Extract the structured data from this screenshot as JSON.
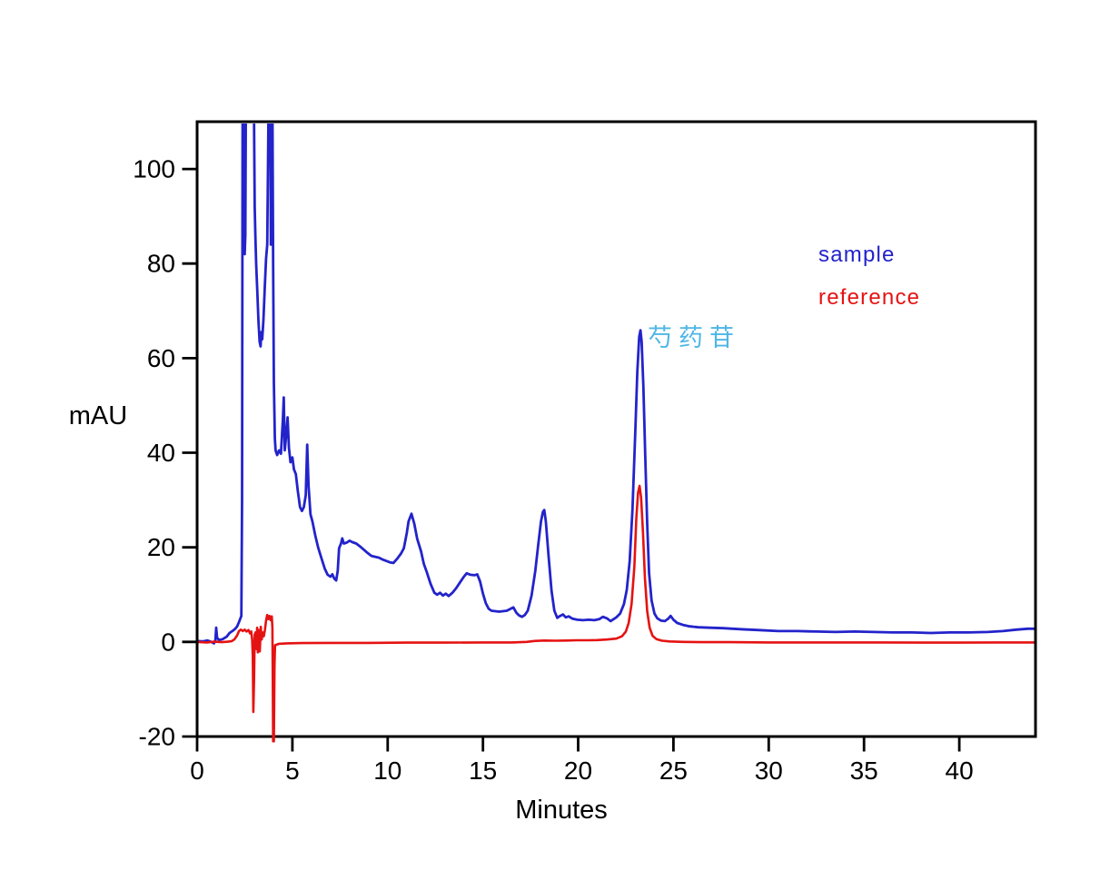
{
  "figure": {
    "background": "#ffffff",
    "border_color": "#000000"
  },
  "chart_data": {
    "type": "line",
    "title": "",
    "xlabel": "Minutes",
    "ylabel": "mAU",
    "xlim": [
      0,
      44
    ],
    "ylim": [
      -20,
      110
    ],
    "x_ticks": [
      0,
      5,
      10,
      15,
      20,
      25,
      30,
      35,
      40
    ],
    "y_ticks": [
      -20,
      0,
      20,
      40,
      60,
      80,
      100
    ],
    "grid": false,
    "legend": {
      "position": "upper-right-inside",
      "entries": [
        {
          "label": "sample",
          "color": "#2323CB"
        },
        {
          "label": "reference",
          "color": "#E51212"
        }
      ]
    },
    "annotations": [
      {
        "text": "芍药苷",
        "x": 23.7,
        "y": 63,
        "color": "#4FB6E6"
      }
    ],
    "series": [
      {
        "name": "sample",
        "color": "#2323CB",
        "stroke_width": 2.8,
        "points": [
          [
            0,
            0.2
          ],
          [
            0.3,
            0.1
          ],
          [
            0.55,
            0.3
          ],
          [
            0.75,
            0
          ],
          [
            0.88,
            -0.3
          ],
          [
            0.96,
            0.3
          ],
          [
            1.0,
            3
          ],
          [
            1.05,
            0.9
          ],
          [
            1.15,
            0.4
          ],
          [
            1.35,
            0.6
          ],
          [
            1.55,
            1.1
          ],
          [
            1.7,
            1.9
          ],
          [
            1.85,
            2.3
          ],
          [
            2.0,
            2.8
          ],
          [
            2.1,
            3.3
          ],
          [
            2.2,
            4.2
          ],
          [
            2.32,
            5.5
          ],
          [
            2.36,
            30
          ],
          [
            2.39,
            115
          ],
          [
            2.45,
            115
          ],
          [
            2.47,
            90
          ],
          [
            2.5,
            82
          ],
          [
            2.53,
            86
          ],
          [
            2.56,
            115
          ],
          [
            2.98,
            115
          ],
          [
            3.02,
            92
          ],
          [
            3.06,
            85.5
          ],
          [
            3.1,
            80
          ],
          [
            3.16,
            74
          ],
          [
            3.22,
            68
          ],
          [
            3.28,
            63.5
          ],
          [
            3.33,
            62.5
          ],
          [
            3.37,
            65.5
          ],
          [
            3.42,
            64
          ],
          [
            3.48,
            68
          ],
          [
            3.55,
            75
          ],
          [
            3.62,
            81
          ],
          [
            3.68,
            84
          ],
          [
            3.72,
            100
          ],
          [
            3.75,
            115
          ],
          [
            3.84,
            115
          ],
          [
            3.87,
            84
          ],
          [
            3.9,
            115
          ],
          [
            3.95,
            115
          ],
          [
            3.99,
            80
          ],
          [
            4.03,
            55
          ],
          [
            4.08,
            43
          ],
          [
            4.12,
            40.5
          ],
          [
            4.2,
            39.5
          ],
          [
            4.3,
            40.5
          ],
          [
            4.4,
            39.8
          ],
          [
            4.5,
            47
          ],
          [
            4.55,
            51.7
          ],
          [
            4.6,
            40.5
          ],
          [
            4.68,
            44
          ],
          [
            4.75,
            47.5
          ],
          [
            4.82,
            41
          ],
          [
            4.9,
            38
          ],
          [
            5.0,
            39
          ],
          [
            5.08,
            36.5
          ],
          [
            5.18,
            35.5
          ],
          [
            5.28,
            32
          ],
          [
            5.4,
            28.5
          ],
          [
            5.5,
            27.7
          ],
          [
            5.6,
            28.5
          ],
          [
            5.7,
            31
          ],
          [
            5.78,
            41.7
          ],
          [
            5.85,
            33
          ],
          [
            5.95,
            27
          ],
          [
            6.05,
            25.5
          ],
          [
            6.2,
            22.5
          ],
          [
            6.35,
            20
          ],
          [
            6.5,
            18
          ],
          [
            6.7,
            15.5
          ],
          [
            6.85,
            14.2
          ],
          [
            7.0,
            13.8
          ],
          [
            7.1,
            14.3
          ],
          [
            7.2,
            13.4
          ],
          [
            7.3,
            13
          ],
          [
            7.38,
            15
          ],
          [
            7.45,
            19.8
          ],
          [
            7.55,
            20.8
          ],
          [
            7.62,
            21.9
          ],
          [
            7.7,
            20.8
          ],
          [
            7.85,
            21
          ],
          [
            8.0,
            21.4
          ],
          [
            8.15,
            21.1
          ],
          [
            8.35,
            20.8
          ],
          [
            8.55,
            20.2
          ],
          [
            8.75,
            19.5
          ],
          [
            8.95,
            18.8
          ],
          [
            9.15,
            18.2
          ],
          [
            9.35,
            18
          ],
          [
            9.55,
            17.8
          ],
          [
            9.75,
            17.4
          ],
          [
            9.95,
            17.1
          ],
          [
            10.15,
            16.8
          ],
          [
            10.3,
            16.7
          ],
          [
            10.5,
            17.6
          ],
          [
            10.7,
            18.7
          ],
          [
            10.85,
            19.8
          ],
          [
            11.0,
            23
          ],
          [
            11.1,
            25.5
          ],
          [
            11.25,
            27.1
          ],
          [
            11.4,
            25
          ],
          [
            11.55,
            21.8
          ],
          [
            11.75,
            19.2
          ],
          [
            11.9,
            16.5
          ],
          [
            12.05,
            14.8
          ],
          [
            12.25,
            12.3
          ],
          [
            12.45,
            10.4
          ],
          [
            12.6,
            10
          ],
          [
            12.75,
            10.4
          ],
          [
            12.9,
            9.8
          ],
          [
            13.05,
            10.2
          ],
          [
            13.2,
            9.7
          ],
          [
            13.4,
            10.4
          ],
          [
            13.6,
            11.4
          ],
          [
            13.8,
            12.6
          ],
          [
            14.0,
            13.8
          ],
          [
            14.15,
            14.5
          ],
          [
            14.35,
            14.2
          ],
          [
            14.55,
            14.1
          ],
          [
            14.7,
            14.3
          ],
          [
            14.85,
            12.8
          ],
          [
            15.0,
            10.2
          ],
          [
            15.15,
            8.2
          ],
          [
            15.3,
            7
          ],
          [
            15.45,
            6.6
          ],
          [
            15.65,
            6.5
          ],
          [
            15.85,
            6.4
          ],
          [
            16.05,
            6.5
          ],
          [
            16.25,
            6.6
          ],
          [
            16.45,
            7
          ],
          [
            16.6,
            7.3
          ],
          [
            16.75,
            6.2
          ],
          [
            16.9,
            5.6
          ],
          [
            17.05,
            5.3
          ],
          [
            17.2,
            5.7
          ],
          [
            17.35,
            6.6
          ],
          [
            17.55,
            9.8
          ],
          [
            17.75,
            15
          ],
          [
            17.9,
            20.5
          ],
          [
            18.05,
            25.5
          ],
          [
            18.15,
            27.5
          ],
          [
            18.22,
            27.9
          ],
          [
            18.3,
            25.5
          ],
          [
            18.45,
            18
          ],
          [
            18.6,
            10.8
          ],
          [
            18.75,
            6.6
          ],
          [
            18.9,
            5.1
          ],
          [
            19.05,
            5.5
          ],
          [
            19.2,
            5.8
          ],
          [
            19.35,
            5.2
          ],
          [
            19.5,
            5.4
          ],
          [
            19.7,
            4.9
          ],
          [
            19.95,
            4.7
          ],
          [
            20.25,
            4.6
          ],
          [
            20.55,
            4.7
          ],
          [
            20.85,
            4.6
          ],
          [
            21.1,
            4.8
          ],
          [
            21.3,
            5.3
          ],
          [
            21.5,
            5
          ],
          [
            21.7,
            4.4
          ],
          [
            21.85,
            4.8
          ],
          [
            22.0,
            5.2
          ],
          [
            22.2,
            6
          ],
          [
            22.4,
            8
          ],
          [
            22.55,
            11
          ],
          [
            22.7,
            17
          ],
          [
            22.85,
            28
          ],
          [
            23.0,
            45
          ],
          [
            23.1,
            57
          ],
          [
            23.2,
            64.5
          ],
          [
            23.27,
            65.9
          ],
          [
            23.33,
            63.5
          ],
          [
            23.42,
            54
          ],
          [
            23.52,
            39
          ],
          [
            23.62,
            25
          ],
          [
            23.72,
            14.5
          ],
          [
            23.85,
            8.8
          ],
          [
            24.0,
            6
          ],
          [
            24.15,
            5
          ],
          [
            24.35,
            4.5
          ],
          [
            24.55,
            4.4
          ],
          [
            24.72,
            4.9
          ],
          [
            24.85,
            5.5
          ],
          [
            25.0,
            4.7
          ],
          [
            25.2,
            4
          ],
          [
            25.5,
            3.6
          ],
          [
            25.85,
            3.3
          ],
          [
            26.3,
            3.1
          ],
          [
            26.9,
            3
          ],
          [
            27.6,
            2.9
          ],
          [
            28.5,
            2.7
          ],
          [
            29.5,
            2.5
          ],
          [
            30.5,
            2.3
          ],
          [
            31.5,
            2.3
          ],
          [
            32.5,
            2.2
          ],
          [
            33.5,
            2.1
          ],
          [
            34.5,
            2.2
          ],
          [
            35.5,
            2.1
          ],
          [
            36.5,
            2
          ],
          [
            37.5,
            2
          ],
          [
            38.5,
            1.9
          ],
          [
            39.5,
            2
          ],
          [
            40.5,
            2
          ],
          [
            41.5,
            2.1
          ],
          [
            42.3,
            2.3
          ],
          [
            43.0,
            2.6
          ],
          [
            43.6,
            2.8
          ],
          [
            44,
            2.8
          ]
        ]
      },
      {
        "name": "reference",
        "color": "#E51212",
        "stroke_width": 2.6,
        "points": [
          [
            0,
            0
          ],
          [
            0.5,
            -0.1
          ],
          [
            0.9,
            0.05
          ],
          [
            1.3,
            -0.05
          ],
          [
            1.6,
            0.05
          ],
          [
            1.8,
            0.15
          ],
          [
            1.95,
            0.5
          ],
          [
            2.1,
            1.4
          ],
          [
            2.2,
            2.3
          ],
          [
            2.3,
            2.6
          ],
          [
            2.4,
            2.3
          ],
          [
            2.5,
            2.6
          ],
          [
            2.6,
            2.2
          ],
          [
            2.7,
            2.5
          ],
          [
            2.78,
            1.8
          ],
          [
            2.84,
            2.2
          ],
          [
            2.89,
            0.5
          ],
          [
            2.92,
            -3
          ],
          [
            2.95,
            -14.8
          ],
          [
            2.99,
            -8
          ],
          [
            3.02,
            1.5
          ],
          [
            3.07,
            2
          ],
          [
            3.11,
            -1.5
          ],
          [
            3.15,
            3
          ],
          [
            3.19,
            -2.2
          ],
          [
            3.24,
            2.5
          ],
          [
            3.29,
            -2
          ],
          [
            3.34,
            3.2
          ],
          [
            3.39,
            0.5
          ],
          [
            3.44,
            2
          ],
          [
            3.5,
            1.2
          ],
          [
            3.56,
            2.6
          ],
          [
            3.62,
            4.5
          ],
          [
            3.68,
            5.7
          ],
          [
            3.74,
            4.8
          ],
          [
            3.8,
            5.5
          ],
          [
            3.86,
            4.6
          ],
          [
            3.92,
            5.4
          ],
          [
            3.95,
            3
          ],
          [
            3.97,
            -8
          ],
          [
            3.99,
            -21
          ],
          [
            4.03,
            -21
          ],
          [
            4.06,
            -5
          ],
          [
            4.09,
            -0.7
          ],
          [
            4.3,
            -0.4
          ],
          [
            4.7,
            -0.3
          ],
          [
            5.5,
            -0.25
          ],
          [
            7,
            -0.2
          ],
          [
            9,
            -0.2
          ],
          [
            11,
            -0.15
          ],
          [
            13,
            -0.15
          ],
          [
            15,
            -0.1
          ],
          [
            16.5,
            -0.1
          ],
          [
            17.3,
            0
          ],
          [
            17.7,
            0.2
          ],
          [
            18.2,
            0.3
          ],
          [
            18.8,
            0.25
          ],
          [
            19.4,
            0.3
          ],
          [
            19.9,
            0.35
          ],
          [
            20.5,
            0.35
          ],
          [
            21.0,
            0.4
          ],
          [
            21.5,
            0.5
          ],
          [
            22.0,
            0.7
          ],
          [
            22.3,
            1.2
          ],
          [
            22.5,
            2.2
          ],
          [
            22.65,
            4
          ],
          [
            22.8,
            8
          ],
          [
            22.95,
            16
          ],
          [
            23.05,
            26
          ],
          [
            23.14,
            31.5
          ],
          [
            23.22,
            33
          ],
          [
            23.3,
            30.5
          ],
          [
            23.4,
            23
          ],
          [
            23.5,
            13.5
          ],
          [
            23.62,
            6.5
          ],
          [
            23.75,
            3
          ],
          [
            23.9,
            1.3
          ],
          [
            24.1,
            0.6
          ],
          [
            24.4,
            0.25
          ],
          [
            24.8,
            0.1
          ],
          [
            25.5,
            0
          ],
          [
            26.5,
            -0.05
          ],
          [
            28,
            -0.05
          ],
          [
            30,
            -0.1
          ],
          [
            32,
            -0.1
          ],
          [
            34,
            -0.1
          ],
          [
            36,
            -0.1
          ],
          [
            38,
            -0.15
          ],
          [
            40,
            -0.15
          ],
          [
            42,
            -0.1
          ],
          [
            44,
            -0.1
          ]
        ]
      }
    ]
  }
}
